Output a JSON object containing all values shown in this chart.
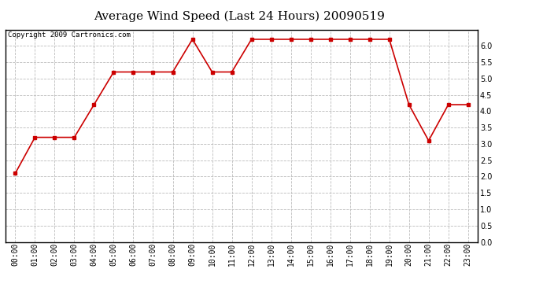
{
  "title": "Average Wind Speed (Last 24 Hours) 20090519",
  "copyright_text": "Copyright 2009 Cartronics.com",
  "hours": [
    "00:00",
    "01:00",
    "02:00",
    "03:00",
    "04:00",
    "05:00",
    "06:00",
    "07:00",
    "08:00",
    "09:00",
    "10:00",
    "11:00",
    "12:00",
    "13:00",
    "14:00",
    "15:00",
    "16:00",
    "17:00",
    "18:00",
    "19:00",
    "20:00",
    "21:00",
    "22:00",
    "23:00"
  ],
  "values": [
    2.1,
    3.2,
    3.2,
    3.2,
    4.2,
    5.2,
    5.2,
    5.2,
    5.2,
    6.2,
    5.2,
    5.2,
    6.2,
    6.2,
    6.2,
    6.2,
    6.2,
    6.2,
    6.2,
    6.2,
    4.2,
    3.1,
    4.2,
    4.2
  ],
  "line_color": "#cc0000",
  "marker": "s",
  "marker_size": 3,
  "marker_linewidth": 1,
  "line_width": 1.2,
  "ylim": [
    0.0,
    6.5
  ],
  "yticks": [
    0.0,
    0.5,
    1.0,
    1.5,
    2.0,
    2.5,
    3.0,
    3.5,
    4.0,
    4.5,
    5.0,
    5.5,
    6.0
  ],
  "grid_color": "#bbbbbb",
  "grid_style": "--",
  "bg_color": "#ffffff",
  "plot_bg_color": "#ffffff",
  "border_color": "#000000",
  "title_fontsize": 11,
  "tick_fontsize": 7,
  "copyright_fontsize": 6.5
}
